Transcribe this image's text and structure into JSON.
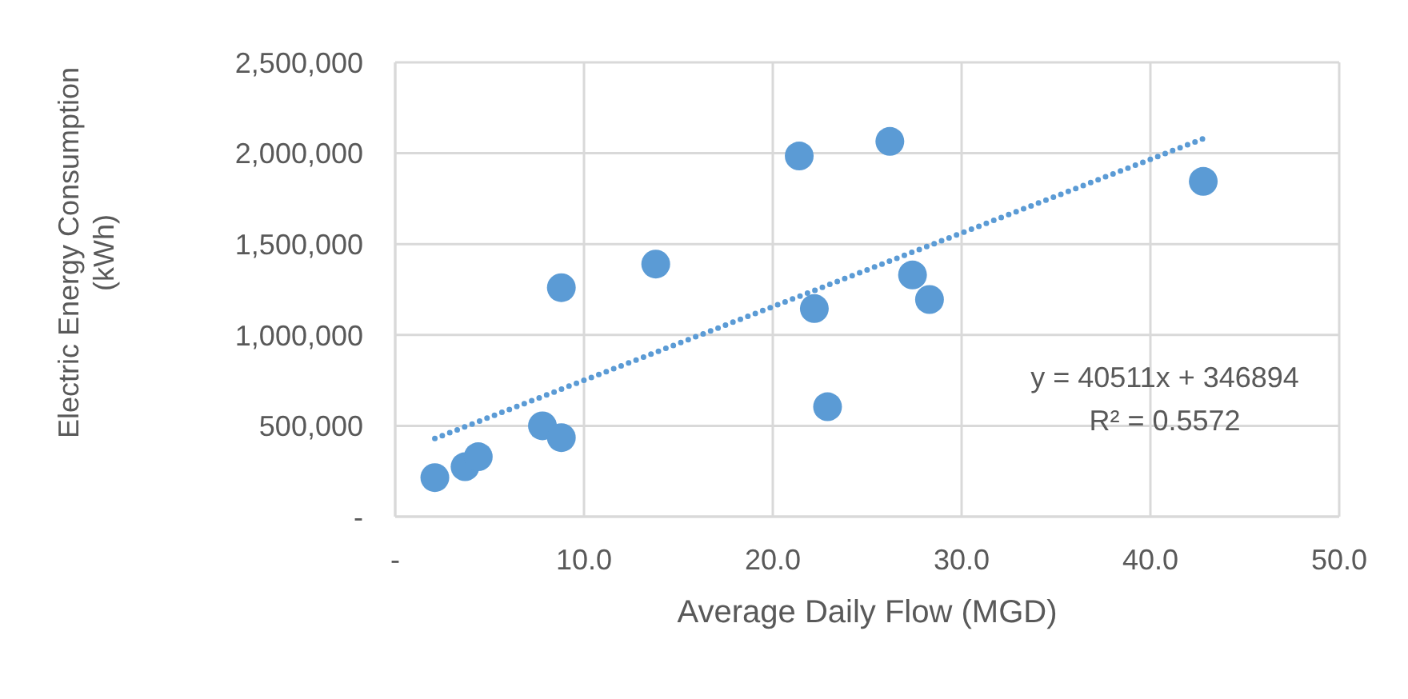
{
  "chart_data": {
    "type": "scatter",
    "xlabel": "Average Daily Flow (MGD)",
    "ylabel": "Electric Energy Consumption (kWh)",
    "x": [
      2.1,
      3.7,
      4.4,
      7.8,
      8.8,
      8.8,
      13.8,
      21.4,
      22.2,
      22.9,
      26.2,
      27.4,
      28.3,
      42.8
    ],
    "series": [
      {
        "color": "#5b9bd5",
        "marker": "circle",
        "values": [
          215000,
          275000,
          330000,
          500000,
          435000,
          1260000,
          1390000,
          1985000,
          1145000,
          605000,
          2065000,
          1330000,
          1195000,
          1845000
        ]
      },
      {
        "type": "line",
        "color": "#5b9bd5",
        "line_style": "dotted",
        "marker": "none",
        "x": [
          2.1,
          42.8
        ],
        "values": [
          430000,
          2080000
        ]
      }
    ],
    "xlim": [
      0,
      50
    ],
    "xticks": [
      {
        "value": 0,
        "label": "-"
      },
      {
        "value": 10,
        "label": "10.0"
      },
      {
        "value": 20,
        "label": "20.0"
      },
      {
        "value": 30,
        "label": "30.0"
      },
      {
        "value": 40,
        "label": "40.0"
      },
      {
        "value": 50,
        "label": "50.0"
      }
    ],
    "ylim": [
      0,
      2500000
    ],
    "yticks": [
      {
        "value": 0,
        "label": "-"
      },
      {
        "value": 500000,
        "label": "500,000"
      },
      {
        "value": 1000000,
        "label": "1,000,000"
      },
      {
        "value": 1500000,
        "label": "1,500,000"
      },
      {
        "value": 2000000,
        "label": "2,000,000"
      },
      {
        "value": 2500000,
        "label": "2,500,000"
      }
    ],
    "grid": true,
    "legend": false,
    "annotations": [
      "y = 40511x + 346894",
      "R² = 0.5572"
    ]
  }
}
